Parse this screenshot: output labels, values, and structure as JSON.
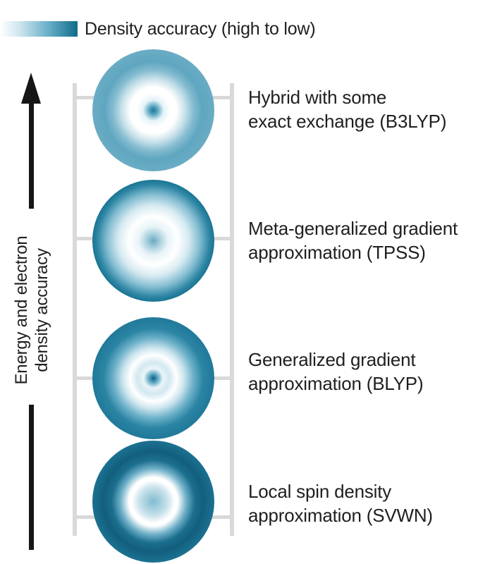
{
  "legend": {
    "label": "Density accuracy (high to low)",
    "colors": [
      "#ffffff",
      "#6fb3cb",
      "#0f6c8a"
    ]
  },
  "axis": {
    "label_line1": "Energy and electron",
    "label_line2": "density accuracy",
    "arrow_color": "#161616"
  },
  "ladder": {
    "rail_color": "#d9d9d9",
    "rungs": [
      {
        "line1": "Hybrid with some",
        "line2": "exact exchange (B3LYP)"
      },
      {
        "line1": "Meta-generalized gradient",
        "line2": "approximation (TPSS)"
      },
      {
        "line1": "Generalized gradient",
        "line2": "approximation (BLYP)"
      },
      {
        "line1": "Local spin density",
        "line2": "approximation (SVWN)"
      }
    ]
  }
}
